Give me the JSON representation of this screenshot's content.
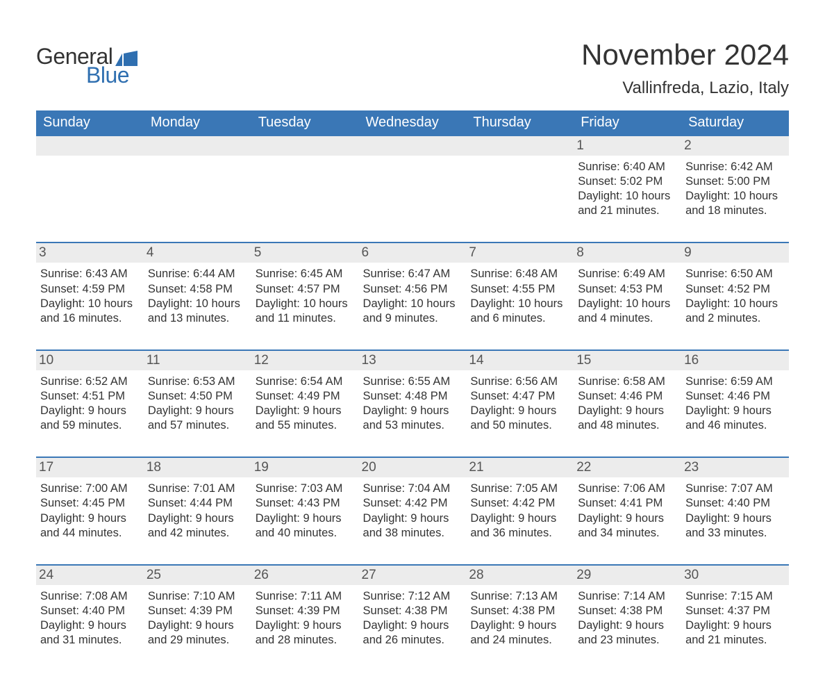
{
  "colors": {
    "header_bg": "#3a77b6",
    "header_text": "#ffffff",
    "band_bg": "#ececec",
    "band_border": "#3a77b6",
    "text": "#333333",
    "logo_blue": "#2f6fb0",
    "page_bg": "#ffffff"
  },
  "logo": {
    "word1": "General",
    "word2": "Blue"
  },
  "title": "November 2024",
  "location": "Vallinfreda, Lazio, Italy",
  "weekdays": [
    "Sunday",
    "Monday",
    "Tuesday",
    "Wednesday",
    "Thursday",
    "Friday",
    "Saturday"
  ],
  "labels": {
    "sunrise": "Sunrise: ",
    "sunset": "Sunset: ",
    "daylight": "Daylight: "
  },
  "weeks": [
    [
      null,
      null,
      null,
      null,
      null,
      {
        "n": "1",
        "sunrise": "6:40 AM",
        "sunset": "5:02 PM",
        "daylight_l1": "10 hours",
        "daylight_l2": "and 21 minutes."
      },
      {
        "n": "2",
        "sunrise": "6:42 AM",
        "sunset": "5:00 PM",
        "daylight_l1": "10 hours",
        "daylight_l2": "and 18 minutes."
      }
    ],
    [
      {
        "n": "3",
        "sunrise": "6:43 AM",
        "sunset": "4:59 PM",
        "daylight_l1": "10 hours",
        "daylight_l2": "and 16 minutes."
      },
      {
        "n": "4",
        "sunrise": "6:44 AM",
        "sunset": "4:58 PM",
        "daylight_l1": "10 hours",
        "daylight_l2": "and 13 minutes."
      },
      {
        "n": "5",
        "sunrise": "6:45 AM",
        "sunset": "4:57 PM",
        "daylight_l1": "10 hours",
        "daylight_l2": "and 11 minutes."
      },
      {
        "n": "6",
        "sunrise": "6:47 AM",
        "sunset": "4:56 PM",
        "daylight_l1": "10 hours",
        "daylight_l2": "and 9 minutes."
      },
      {
        "n": "7",
        "sunrise": "6:48 AM",
        "sunset": "4:55 PM",
        "daylight_l1": "10 hours",
        "daylight_l2": "and 6 minutes."
      },
      {
        "n": "8",
        "sunrise": "6:49 AM",
        "sunset": "4:53 PM",
        "daylight_l1": "10 hours",
        "daylight_l2": "and 4 minutes."
      },
      {
        "n": "9",
        "sunrise": "6:50 AM",
        "sunset": "4:52 PM",
        "daylight_l1": "10 hours",
        "daylight_l2": "and 2 minutes."
      }
    ],
    [
      {
        "n": "10",
        "sunrise": "6:52 AM",
        "sunset": "4:51 PM",
        "daylight_l1": "9 hours",
        "daylight_l2": "and 59 minutes."
      },
      {
        "n": "11",
        "sunrise": "6:53 AM",
        "sunset": "4:50 PM",
        "daylight_l1": "9 hours",
        "daylight_l2": "and 57 minutes."
      },
      {
        "n": "12",
        "sunrise": "6:54 AM",
        "sunset": "4:49 PM",
        "daylight_l1": "9 hours",
        "daylight_l2": "and 55 minutes."
      },
      {
        "n": "13",
        "sunrise": "6:55 AM",
        "sunset": "4:48 PM",
        "daylight_l1": "9 hours",
        "daylight_l2": "and 53 minutes."
      },
      {
        "n": "14",
        "sunrise": "6:56 AM",
        "sunset": "4:47 PM",
        "daylight_l1": "9 hours",
        "daylight_l2": "and 50 minutes."
      },
      {
        "n": "15",
        "sunrise": "6:58 AM",
        "sunset": "4:46 PM",
        "daylight_l1": "9 hours",
        "daylight_l2": "and 48 minutes."
      },
      {
        "n": "16",
        "sunrise": "6:59 AM",
        "sunset": "4:46 PM",
        "daylight_l1": "9 hours",
        "daylight_l2": "and 46 minutes."
      }
    ],
    [
      {
        "n": "17",
        "sunrise": "7:00 AM",
        "sunset": "4:45 PM",
        "daylight_l1": "9 hours",
        "daylight_l2": "and 44 minutes."
      },
      {
        "n": "18",
        "sunrise": "7:01 AM",
        "sunset": "4:44 PM",
        "daylight_l1": "9 hours",
        "daylight_l2": "and 42 minutes."
      },
      {
        "n": "19",
        "sunrise": "7:03 AM",
        "sunset": "4:43 PM",
        "daylight_l1": "9 hours",
        "daylight_l2": "and 40 minutes."
      },
      {
        "n": "20",
        "sunrise": "7:04 AM",
        "sunset": "4:42 PM",
        "daylight_l1": "9 hours",
        "daylight_l2": "and 38 minutes."
      },
      {
        "n": "21",
        "sunrise": "7:05 AM",
        "sunset": "4:42 PM",
        "daylight_l1": "9 hours",
        "daylight_l2": "and 36 minutes."
      },
      {
        "n": "22",
        "sunrise": "7:06 AM",
        "sunset": "4:41 PM",
        "daylight_l1": "9 hours",
        "daylight_l2": "and 34 minutes."
      },
      {
        "n": "23",
        "sunrise": "7:07 AM",
        "sunset": "4:40 PM",
        "daylight_l1": "9 hours",
        "daylight_l2": "and 33 minutes."
      }
    ],
    [
      {
        "n": "24",
        "sunrise": "7:08 AM",
        "sunset": "4:40 PM",
        "daylight_l1": "9 hours",
        "daylight_l2": "and 31 minutes."
      },
      {
        "n": "25",
        "sunrise": "7:10 AM",
        "sunset": "4:39 PM",
        "daylight_l1": "9 hours",
        "daylight_l2": "and 29 minutes."
      },
      {
        "n": "26",
        "sunrise": "7:11 AM",
        "sunset": "4:39 PM",
        "daylight_l1": "9 hours",
        "daylight_l2": "and 28 minutes."
      },
      {
        "n": "27",
        "sunrise": "7:12 AM",
        "sunset": "4:38 PM",
        "daylight_l1": "9 hours",
        "daylight_l2": "and 26 minutes."
      },
      {
        "n": "28",
        "sunrise": "7:13 AM",
        "sunset": "4:38 PM",
        "daylight_l1": "9 hours",
        "daylight_l2": "and 24 minutes."
      },
      {
        "n": "29",
        "sunrise": "7:14 AM",
        "sunset": "4:38 PM",
        "daylight_l1": "9 hours",
        "daylight_l2": "and 23 minutes."
      },
      {
        "n": "30",
        "sunrise": "7:15 AM",
        "sunset": "4:37 PM",
        "daylight_l1": "9 hours",
        "daylight_l2": "and 21 minutes."
      }
    ]
  ]
}
